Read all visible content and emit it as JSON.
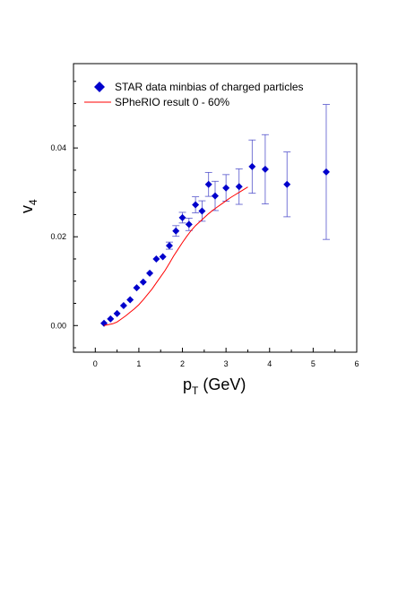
{
  "chart_data": {
    "type": "scatter",
    "xlabel": "p",
    "xlabel_sub": "T",
    "xlabel_unit": " (GeV)",
    "ylabel": "v",
    "ylabel_sub": "4",
    "xlim": [
      -0.5,
      6
    ],
    "ylim": [
      -0.006,
      0.059
    ],
    "x_ticks": [
      0,
      1,
      2,
      3,
      4,
      5,
      6
    ],
    "x_tick_labels": [
      "0",
      "1",
      "2",
      "3",
      "4",
      "5",
      "6"
    ],
    "y_ticks": [
      0.0,
      0.02,
      0.04
    ],
    "y_tick_labels": [
      "0.00",
      "0.02",
      "0.04"
    ],
    "grid": false,
    "legend_position": "top-left",
    "series": [
      {
        "name": "STAR data minbias of charged particles",
        "kind": "points",
        "marker": "diamond",
        "color": "#0000cc",
        "x": [
          0.2,
          0.35,
          0.5,
          0.65,
          0.8,
          0.95,
          1.1,
          1.25,
          1.4,
          1.55,
          1.7,
          1.85,
          2.0,
          2.15,
          2.3,
          2.45,
          2.6,
          2.75,
          3.0,
          3.3,
          3.6,
          3.9,
          4.4,
          5.3
        ],
        "y": [
          0.0005,
          0.0015,
          0.0027,
          0.0045,
          0.0058,
          0.0085,
          0.0098,
          0.0118,
          0.015,
          0.0155,
          0.018,
          0.0213,
          0.0243,
          0.0228,
          0.0272,
          0.0258,
          0.0318,
          0.0292,
          0.031,
          0.0313,
          0.0358,
          0.0352,
          0.0318,
          0.0346
        ],
        "err": [
          0,
          0,
          0,
          0,
          0,
          0,
          0,
          0,
          0,
          0,
          0.0008,
          0.0012,
          0.0012,
          0.0014,
          0.0018,
          0.0023,
          0.0027,
          0.0033,
          0.003,
          0.004,
          0.006,
          0.0078,
          0.0073,
          0.0152
        ]
      },
      {
        "name": "SPheRIO result 0 - 60%",
        "kind": "line",
        "color": "#ff0000",
        "x": [
          0.2,
          0.3,
          0.4,
          0.5,
          0.6,
          0.7,
          0.8,
          0.9,
          1.0,
          1.1,
          1.2,
          1.3,
          1.4,
          1.5,
          1.6,
          1.7,
          1.8,
          1.9,
          2.0,
          2.1,
          2.2,
          2.3,
          2.4,
          2.5,
          2.6,
          2.7,
          2.8,
          2.9,
          3.0,
          3.1,
          3.2,
          3.3,
          3.4,
          3.5
        ],
        "y": [
          0.0,
          0.0002,
          0.0004,
          0.0008,
          0.0015,
          0.0022,
          0.003,
          0.0038,
          0.0047,
          0.0058,
          0.007,
          0.0082,
          0.0096,
          0.011,
          0.0124,
          0.014,
          0.0157,
          0.0172,
          0.0187,
          0.0201,
          0.0214,
          0.0225,
          0.0234,
          0.0243,
          0.0252,
          0.026,
          0.0267,
          0.0274,
          0.0281,
          0.0288,
          0.0294,
          0.03,
          0.0306,
          0.0312
        ]
      }
    ]
  }
}
